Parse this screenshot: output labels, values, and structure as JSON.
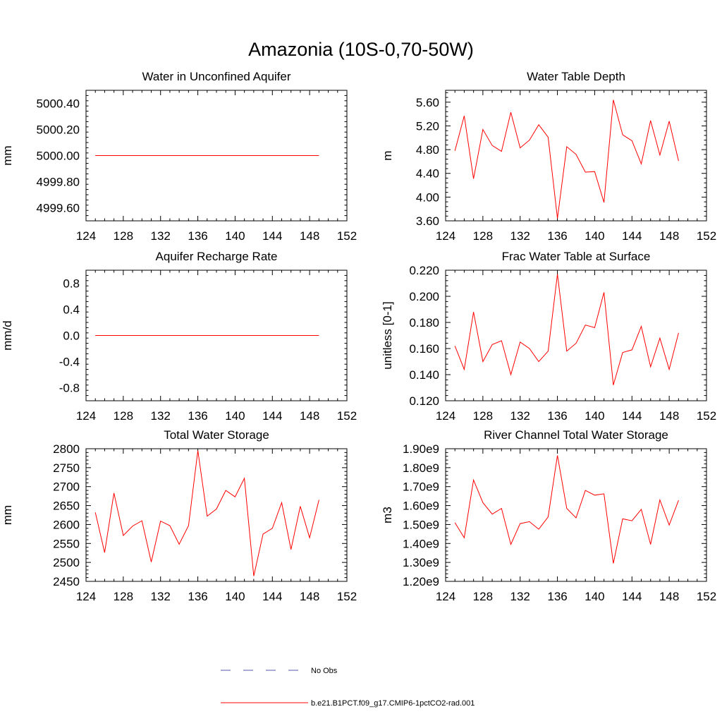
{
  "figure_title": "Amazonia (10S-0,70-50W)",
  "colors": {
    "series": "#ff0000",
    "obs": "#5555aa",
    "axis": "#000000"
  },
  "legend": {
    "obs_label": "No Obs",
    "model_label": "b.e21.B1PCT.f09_g17.CMIP6-1pctCO2-rad.001"
  },
  "chart_data": [
    {
      "type": "line",
      "title": "Water in Unconfined Aquifer",
      "ylabel": "mm",
      "xlim": [
        124,
        152
      ],
      "ylim": [
        4999.5,
        5000.5
      ],
      "yticks": [
        4999.6,
        4999.8,
        5000.0,
        5000.2,
        5000.4
      ],
      "ytick_labels": [
        "4999.60",
        "4999.80",
        "5000.00",
        "5000.20",
        "5000.40"
      ],
      "xticks": [
        124,
        128,
        132,
        136,
        140,
        144,
        148,
        152
      ],
      "x": [
        125,
        126,
        127,
        128,
        129,
        130,
        131,
        132,
        133,
        134,
        135,
        136,
        137,
        138,
        139,
        140,
        141,
        142,
        143,
        144,
        145,
        146,
        147,
        148,
        149
      ],
      "values": [
        5000,
        5000,
        5000,
        5000,
        5000,
        5000,
        5000,
        5000,
        5000,
        5000,
        5000,
        5000,
        5000,
        5000,
        5000,
        5000,
        5000,
        5000,
        5000,
        5000,
        5000,
        5000,
        5000,
        5000,
        5000
      ]
    },
    {
      "type": "line",
      "title": "Water Table Depth",
      "ylabel": "m",
      "xlim": [
        124,
        152
      ],
      "ylim": [
        3.6,
        5.8
      ],
      "yticks": [
        3.6,
        4.0,
        4.4,
        4.8,
        5.2,
        5.6
      ],
      "ytick_labels": [
        "3.60",
        "4.00",
        "4.40",
        "4.80",
        "5.20",
        "5.60"
      ],
      "xticks": [
        124,
        128,
        132,
        136,
        140,
        144,
        148,
        152
      ],
      "x": [
        125,
        126,
        127,
        128,
        129,
        130,
        131,
        132,
        133,
        134,
        135,
        136,
        137,
        138,
        139,
        140,
        141,
        142,
        143,
        144,
        145,
        146,
        147,
        148,
        149
      ],
      "values": [
        4.78,
        5.37,
        4.31,
        5.14,
        4.87,
        4.77,
        5.43,
        4.83,
        4.96,
        5.22,
        5.01,
        3.64,
        4.85,
        4.72,
        4.42,
        4.43,
        3.91,
        5.64,
        5.05,
        4.95,
        4.56,
        5.29,
        4.71,
        5.28,
        4.61
      ]
    },
    {
      "type": "line",
      "title": "Aquifer Recharge Rate",
      "ylabel": "mm/d",
      "xlim": [
        124,
        152
      ],
      "ylim": [
        -1.0,
        1.0
      ],
      "yticks": [
        -0.8,
        -0.4,
        0.0,
        0.4,
        0.8
      ],
      "ytick_labels": [
        "-0.8",
        "-0.4",
        "0.0",
        "0.4",
        "0.8"
      ],
      "xticks": [
        124,
        128,
        132,
        136,
        140,
        144,
        148,
        152
      ],
      "x": [
        125,
        126,
        127,
        128,
        129,
        130,
        131,
        132,
        133,
        134,
        135,
        136,
        137,
        138,
        139,
        140,
        141,
        142,
        143,
        144,
        145,
        146,
        147,
        148,
        149
      ],
      "values": [
        0,
        0,
        0,
        0,
        0,
        0,
        0,
        0,
        0,
        0,
        0,
        0,
        0,
        0,
        0,
        0,
        0,
        0,
        0,
        0,
        0,
        0,
        0,
        0,
        0
      ]
    },
    {
      "type": "line",
      "title": "Frac Water Table at Surface",
      "ylabel": "unitless [0-1]",
      "xlim": [
        124,
        152
      ],
      "ylim": [
        0.12,
        0.22
      ],
      "yticks": [
        0.12,
        0.14,
        0.16,
        0.18,
        0.2,
        0.22
      ],
      "ytick_labels": [
        "0.120",
        "0.140",
        "0.160",
        "0.180",
        "0.200",
        "0.220"
      ],
      "xticks": [
        124,
        128,
        132,
        136,
        140,
        144,
        148,
        152
      ],
      "x": [
        125,
        126,
        127,
        128,
        129,
        130,
        131,
        132,
        133,
        134,
        135,
        136,
        137,
        138,
        139,
        140,
        141,
        142,
        143,
        144,
        145,
        146,
        147,
        148,
        149
      ],
      "values": [
        0.162,
        0.144,
        0.188,
        0.15,
        0.163,
        0.166,
        0.14,
        0.165,
        0.16,
        0.15,
        0.158,
        0.217,
        0.158,
        0.164,
        0.178,
        0.176,
        0.203,
        0.132,
        0.157,
        0.159,
        0.177,
        0.146,
        0.168,
        0.144,
        0.172
      ]
    },
    {
      "type": "line",
      "title": "Total Water Storage",
      "ylabel": "mm",
      "xlim": [
        124,
        152
      ],
      "ylim": [
        2450,
        2800
      ],
      "yticks": [
        2450,
        2500,
        2550,
        2600,
        2650,
        2700,
        2750,
        2800
      ],
      "ytick_labels": [
        "2450",
        "2500",
        "2550",
        "2600",
        "2650",
        "2700",
        "2750",
        "2800"
      ],
      "xticks": [
        124,
        128,
        132,
        136,
        140,
        144,
        148,
        152
      ],
      "x": [
        125,
        126,
        127,
        128,
        129,
        130,
        131,
        132,
        133,
        134,
        135,
        136,
        137,
        138,
        139,
        140,
        141,
        142,
        143,
        144,
        145,
        146,
        147,
        148,
        149
      ],
      "values": [
        2632,
        2526,
        2683,
        2571,
        2596,
        2610,
        2501,
        2609,
        2597,
        2548,
        2597,
        2795,
        2622,
        2641,
        2690,
        2673,
        2722,
        2464,
        2575,
        2590,
        2658,
        2534,
        2648,
        2565,
        2665
      ]
    },
    {
      "type": "line",
      "title": "River Channel Total Water Storage",
      "ylabel": "m3",
      "xlim": [
        124,
        152
      ],
      "ylim": [
        1200000000.0,
        1900000000.0
      ],
      "yticks": [
        1200000000.0,
        1300000000.0,
        1400000000.0,
        1500000000.0,
        1600000000.0,
        1700000000.0,
        1800000000.0,
        1900000000.0
      ],
      "ytick_labels": [
        "1.20e9",
        "1.30e9",
        "1.40e9",
        "1.50e9",
        "1.60e9",
        "1.70e9",
        "1.80e9",
        "1.90e9"
      ],
      "xticks": [
        124,
        128,
        132,
        136,
        140,
        144,
        148,
        152
      ],
      "x": [
        125,
        126,
        127,
        128,
        129,
        130,
        131,
        132,
        133,
        134,
        135,
        136,
        137,
        138,
        139,
        140,
        141,
        142,
        143,
        144,
        145,
        146,
        147,
        148,
        149
      ],
      "values": [
        1510000000.0,
        1430000000.0,
        1735000000.0,
        1615000000.0,
        1555000000.0,
        1585000000.0,
        1395000000.0,
        1505000000.0,
        1515000000.0,
        1475000000.0,
        1540000000.0,
        1865000000.0,
        1585000000.0,
        1535000000.0,
        1680000000.0,
        1655000000.0,
        1662000000.0,
        1295000000.0,
        1530000000.0,
        1520000000.0,
        1580000000.0,
        1395000000.0,
        1630000000.0,
        1497000000.0,
        1628000000.0
      ]
    }
  ]
}
